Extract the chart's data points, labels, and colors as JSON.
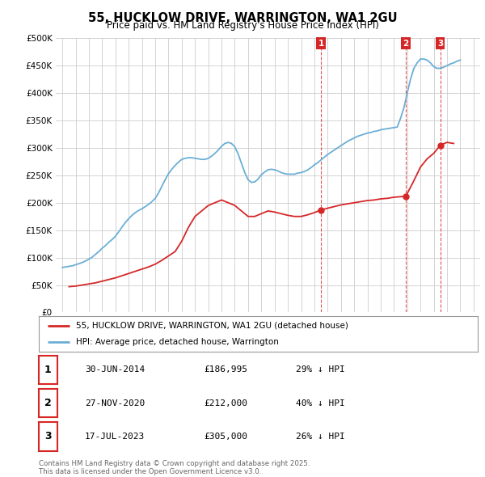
{
  "title": "55, HUCKLOW DRIVE, WARRINGTON, WA1 2GU",
  "subtitle": "Price paid vs. HM Land Registry's House Price Index (HPI)",
  "hpi_color": "#6baed6",
  "price_color": "#d62728",
  "background_color": "#ffffff",
  "grid_color": "#cccccc",
  "ylim": [
    0,
    500000
  ],
  "yticks": [
    0,
    50000,
    100000,
    150000,
    200000,
    250000,
    300000,
    350000,
    400000,
    450000,
    500000
  ],
  "transactions": [
    {
      "label": "1",
      "date": "30-JUN-2014",
      "price": 186995,
      "x": 2014.5
    },
    {
      "label": "2",
      "date": "27-NOV-2020",
      "price": 212000,
      "x": 2020.9
    },
    {
      "label": "3",
      "date": "17-JUL-2023",
      "price": 305000,
      "x": 2023.5
    }
  ],
  "vline_x": [
    2014.5,
    2020.9,
    2023.5
  ],
  "legend_label_red": "55, HUCKLOW DRIVE, WARRINGTON, WA1 2GU (detached house)",
  "legend_label_blue": "HPI: Average price, detached house, Warrington",
  "footer": "Contains HM Land Registry data © Crown copyright and database right 2025.\nThis data is licensed under the Open Government Licence v3.0.",
  "table_rows": [
    {
      "num": "1",
      "date": "30-JUN-2014",
      "price": "£186,995",
      "pct": "29% ↓ HPI"
    },
    {
      "num": "2",
      "date": "27-NOV-2020",
      "price": "£212,000",
      "pct": "40% ↓ HPI"
    },
    {
      "num": "3",
      "date": "17-JUL-2023",
      "price": "£305,000",
      "pct": "26% ↓ HPI"
    }
  ],
  "hpi_data_x": [
    1995.0,
    1995.25,
    1995.5,
    1995.75,
    1996.0,
    1996.25,
    1996.5,
    1996.75,
    1997.0,
    1997.25,
    1997.5,
    1997.75,
    1998.0,
    1998.25,
    1998.5,
    1998.75,
    1999.0,
    1999.25,
    1999.5,
    1999.75,
    2000.0,
    2000.25,
    2000.5,
    2000.75,
    2001.0,
    2001.25,
    2001.5,
    2001.75,
    2002.0,
    2002.25,
    2002.5,
    2002.75,
    2003.0,
    2003.25,
    2003.5,
    2003.75,
    2004.0,
    2004.25,
    2004.5,
    2004.75,
    2005.0,
    2005.25,
    2005.5,
    2005.75,
    2006.0,
    2006.25,
    2006.5,
    2006.75,
    2007.0,
    2007.25,
    2007.5,
    2007.75,
    2008.0,
    2008.25,
    2008.5,
    2008.75,
    2009.0,
    2009.25,
    2009.5,
    2009.75,
    2010.0,
    2010.25,
    2010.5,
    2010.75,
    2011.0,
    2011.25,
    2011.5,
    2011.75,
    2012.0,
    2012.25,
    2012.5,
    2012.75,
    2013.0,
    2013.25,
    2013.5,
    2013.75,
    2014.0,
    2014.25,
    2014.5,
    2014.75,
    2015.0,
    2015.25,
    2015.5,
    2015.75,
    2016.0,
    2016.25,
    2016.5,
    2016.75,
    2017.0,
    2017.25,
    2017.5,
    2017.75,
    2018.0,
    2018.25,
    2018.5,
    2018.75,
    2019.0,
    2019.25,
    2019.5,
    2019.75,
    2020.0,
    2020.25,
    2020.5,
    2020.75,
    2021.0,
    2021.25,
    2021.5,
    2021.75,
    2022.0,
    2022.25,
    2022.5,
    2022.75,
    2023.0,
    2023.25,
    2023.5,
    2023.75,
    2024.0,
    2024.25,
    2024.5,
    2024.75,
    2025.0
  ],
  "hpi_data_y": [
    82000,
    83000,
    84000,
    85000,
    87000,
    89000,
    91000,
    94000,
    97000,
    101000,
    106000,
    111000,
    117000,
    122000,
    128000,
    133000,
    139000,
    147000,
    156000,
    164000,
    171000,
    177000,
    182000,
    186000,
    189000,
    193000,
    197000,
    202000,
    208000,
    218000,
    230000,
    242000,
    253000,
    261000,
    268000,
    274000,
    279000,
    281000,
    282000,
    282000,
    281000,
    280000,
    279000,
    279000,
    281000,
    285000,
    290000,
    296000,
    303000,
    308000,
    310000,
    308000,
    302000,
    289000,
    272000,
    255000,
    242000,
    237000,
    238000,
    243000,
    251000,
    256000,
    260000,
    261000,
    260000,
    258000,
    255000,
    253000,
    252000,
    252000,
    252000,
    254000,
    255000,
    257000,
    260000,
    264000,
    269000,
    273000,
    278000,
    283000,
    288000,
    292000,
    296000,
    300000,
    304000,
    308000,
    312000,
    315000,
    318000,
    321000,
    323000,
    325000,
    327000,
    328000,
    330000,
    331000,
    333000,
    334000,
    335000,
    336000,
    337000,
    338000,
    354000,
    373000,
    400000,
    425000,
    445000,
    455000,
    462000,
    462000,
    460000,
    455000,
    448000,
    445000,
    445000,
    447000,
    450000,
    453000,
    455000,
    458000,
    460000
  ],
  "price_data_x": [
    1995.5,
    1996.0,
    1996.5,
    1997.0,
    1997.5,
    1998.0,
    1998.5,
    1999.0,
    1999.5,
    2000.0,
    2000.5,
    2001.0,
    2001.5,
    2002.0,
    2002.5,
    2003.0,
    2003.5,
    2004.0,
    2004.5,
    2005.0,
    2005.5,
    2006.0,
    2006.5,
    2007.0,
    2007.5,
    2008.0,
    2008.5,
    2009.0,
    2009.5,
    2010.0,
    2010.5,
    2011.0,
    2011.5,
    2012.0,
    2012.5,
    2013.0,
    2013.5,
    2014.0,
    2014.5,
    2015.0,
    2015.5,
    2016.0,
    2016.5,
    2017.0,
    2017.5,
    2018.0,
    2018.5,
    2019.0,
    2019.5,
    2020.0,
    2020.5,
    2020.9,
    2021.5,
    2022.0,
    2022.5,
    2023.0,
    2023.5,
    2024.0,
    2024.5
  ],
  "price_data_y": [
    47000,
    48000,
    50000,
    52000,
    54000,
    57000,
    60000,
    63000,
    67000,
    71000,
    75000,
    79000,
    83000,
    88000,
    95000,
    103000,
    111000,
    130000,
    155000,
    175000,
    185000,
    195000,
    200000,
    205000,
    200000,
    195000,
    185000,
    175000,
    175000,
    180000,
    185000,
    183000,
    180000,
    177000,
    175000,
    175000,
    178000,
    182000,
    186995,
    190000,
    193000,
    196000,
    198000,
    200000,
    202000,
    204000,
    205000,
    207000,
    208000,
    210000,
    211000,
    212000,
    240000,
    265000,
    280000,
    290000,
    305000,
    310000,
    308000
  ]
}
